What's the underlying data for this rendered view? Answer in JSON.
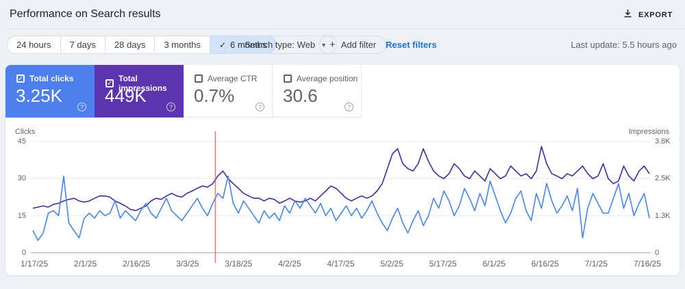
{
  "header": {
    "title": "Performance on Search results",
    "export_label": "EXPORT"
  },
  "filters": {
    "date_ranges": [
      {
        "label": "24 hours",
        "selected": false
      },
      {
        "label": "7 days",
        "selected": false
      },
      {
        "label": "28 days",
        "selected": false
      },
      {
        "label": "3 months",
        "selected": false
      },
      {
        "label": "6 months",
        "selected": true
      }
    ],
    "selected_check": "✓",
    "search_type_label": "Search type: Web",
    "add_filter_label": "Add filter",
    "reset_filters_label": "Reset filters",
    "last_update": "Last update: 5.5 hours ago"
  },
  "metrics": [
    {
      "label": "Total clicks",
      "value": "3.25K",
      "checked": true,
      "color": "#4d7fee"
    },
    {
      "label": "Total impressions",
      "value": "449K",
      "checked": true,
      "color": "#5b35b0"
    },
    {
      "label": "Average CTR",
      "value": "0.7%",
      "checked": false,
      "color": ""
    },
    {
      "label": "Average position",
      "value": "30.6",
      "checked": false,
      "color": ""
    }
  ],
  "chart_data": {
    "type": "line",
    "grid": "horizontal",
    "x_tick_labels": [
      "1/17/25",
      "2/1/25",
      "2/16/25",
      "3/3/25",
      "3/18/25",
      "4/2/25",
      "4/17/25",
      "5/2/25",
      "5/17/25",
      "6/1/25",
      "6/16/25",
      "7/1/25",
      "7/16/25"
    ],
    "left_axis": {
      "label": "Clicks",
      "max": 45,
      "ticks": [
        45,
        30,
        15,
        0
      ]
    },
    "right_axis": {
      "label": "Impressions",
      "max": 3800,
      "ticks": [
        "3.8K",
        "2.5K",
        "1.3K",
        "0"
      ]
    },
    "annotation": {
      "type": "vertical-line",
      "approx_date": "3/11/25",
      "x_fraction": 0.296,
      "color": "#e2695f"
    },
    "series": [
      {
        "name": "Total clicks",
        "axis": "left",
        "color": "#4285f4",
        "values": [
          9,
          5,
          8,
          16,
          17,
          15,
          31,
          12,
          9,
          6,
          14,
          16,
          14,
          17,
          15,
          16,
          21,
          14,
          17,
          15,
          13,
          17,
          20,
          16,
          14,
          18,
          22,
          17,
          15,
          13,
          16,
          19,
          22,
          18,
          15,
          20,
          24,
          22,
          31,
          20,
          16,
          21,
          18,
          15,
          12,
          17,
          14,
          16,
          13,
          19,
          16,
          21,
          18,
          22,
          19,
          16,
          20,
          15,
          18,
          13,
          16,
          19,
          15,
          18,
          14,
          17,
          21,
          16,
          12,
          9,
          14,
          18,
          12,
          8,
          13,
          17,
          11,
          15,
          22,
          18,
          25,
          21,
          15,
          19,
          26,
          22,
          17,
          24,
          19,
          29,
          23,
          17,
          12,
          16,
          22,
          25,
          17,
          13,
          24,
          18,
          28,
          21,
          16,
          19,
          23,
          17,
          26,
          6,
          18,
          24,
          20,
          16,
          16,
          22,
          28,
          18,
          24,
          15,
          20,
          24,
          14
        ]
      },
      {
        "name": "Total impressions",
        "axis": "right",
        "color": "#4328a6",
        "values": [
          1520,
          1560,
          1600,
          1560,
          1650,
          1690,
          1770,
          1820,
          1860,
          1770,
          1730,
          1770,
          1860,
          1940,
          1940,
          1900,
          1770,
          1690,
          1600,
          1480,
          1440,
          1520,
          1600,
          1770,
          1860,
          1820,
          1940,
          2030,
          1940,
          1900,
          2030,
          2110,
          2200,
          2280,
          2240,
          2360,
          2620,
          2790,
          2530,
          2360,
          2200,
          2030,
          1940,
          1860,
          1860,
          1770,
          1860,
          1820,
          1690,
          1770,
          1860,
          1770,
          1730,
          1770,
          1860,
          1770,
          1940,
          2110,
          2280,
          2200,
          2030,
          1860,
          1770,
          1860,
          1940,
          1860,
          1940,
          2110,
          2360,
          2870,
          3380,
          3550,
          3040,
          2870,
          2790,
          3040,
          3550,
          3120,
          2790,
          2620,
          2530,
          2700,
          3040,
          2870,
          2620,
          2530,
          2790,
          2620,
          2450,
          2870,
          2700,
          2530,
          2620,
          2960,
          2790,
          2620,
          2700,
          2530,
          2790,
          3630,
          3040,
          2700,
          2620,
          2530,
          2700,
          2620,
          2790,
          2960,
          2700,
          2530,
          2620,
          3040,
          2530,
          2360,
          2450,
          2960,
          2620,
          2450,
          2790,
          2960,
          2700
        ]
      }
    ]
  }
}
